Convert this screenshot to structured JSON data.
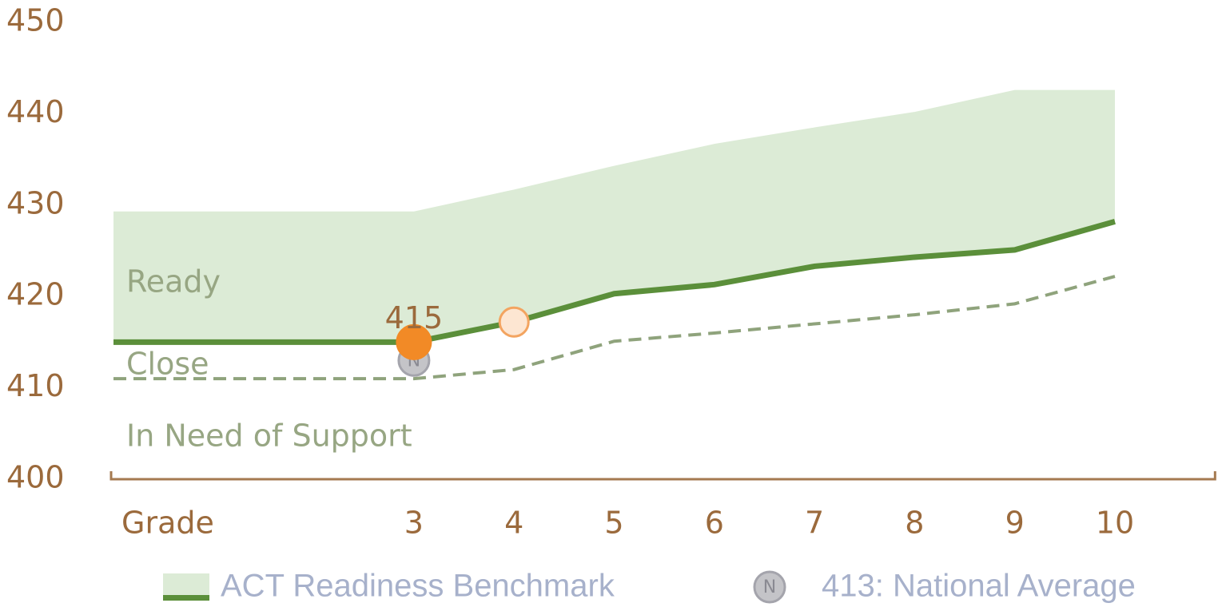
{
  "chart_data": {
    "type": "line",
    "x_label": "Grade",
    "xlim": [
      0,
      11
    ],
    "xticks": [
      3,
      4,
      5,
      6,
      7,
      8,
      9,
      10
    ],
    "ylim": [
      400,
      450
    ],
    "yticks": [
      400,
      410,
      420,
      430,
      440,
      450
    ],
    "grid": false,
    "zones": [
      "Ready",
      "Close",
      "In Need of Support"
    ],
    "band": {
      "color": "#dcebd6",
      "x": [
        0,
        3,
        4,
        5,
        6,
        7,
        8,
        9,
        10
      ],
      "values": [
        429.3,
        429.3,
        431.7,
        434.3,
        436.7,
        438.5,
        440.2,
        442.6,
        442.6
      ]
    },
    "benchmark": {
      "name": "ACT Readiness Benchmark",
      "color": "#5b8f3a",
      "x": [
        0,
        3,
        4,
        5,
        6,
        7,
        8,
        9,
        10
      ],
      "values": [
        415,
        415,
        417.2,
        420.3,
        421.3,
        423.3,
        424.3,
        425.1,
        428.2
      ]
    },
    "close_line": {
      "color": "#8fa37c",
      "x": [
        0,
        3,
        4,
        5,
        6,
        7,
        8,
        9,
        10
      ],
      "values": [
        411,
        411,
        412,
        415.1,
        416,
        417,
        418,
        419.2,
        422.2
      ]
    },
    "student": {
      "color": "#f28a26",
      "x": [
        3,
        4
      ],
      "values": [
        415,
        417.2
      ],
      "value_labels": [
        "415",
        null
      ]
    },
    "national": {
      "name": "413: National Average",
      "marker_label": "N",
      "x": 3,
      "value": 413
    }
  }
}
